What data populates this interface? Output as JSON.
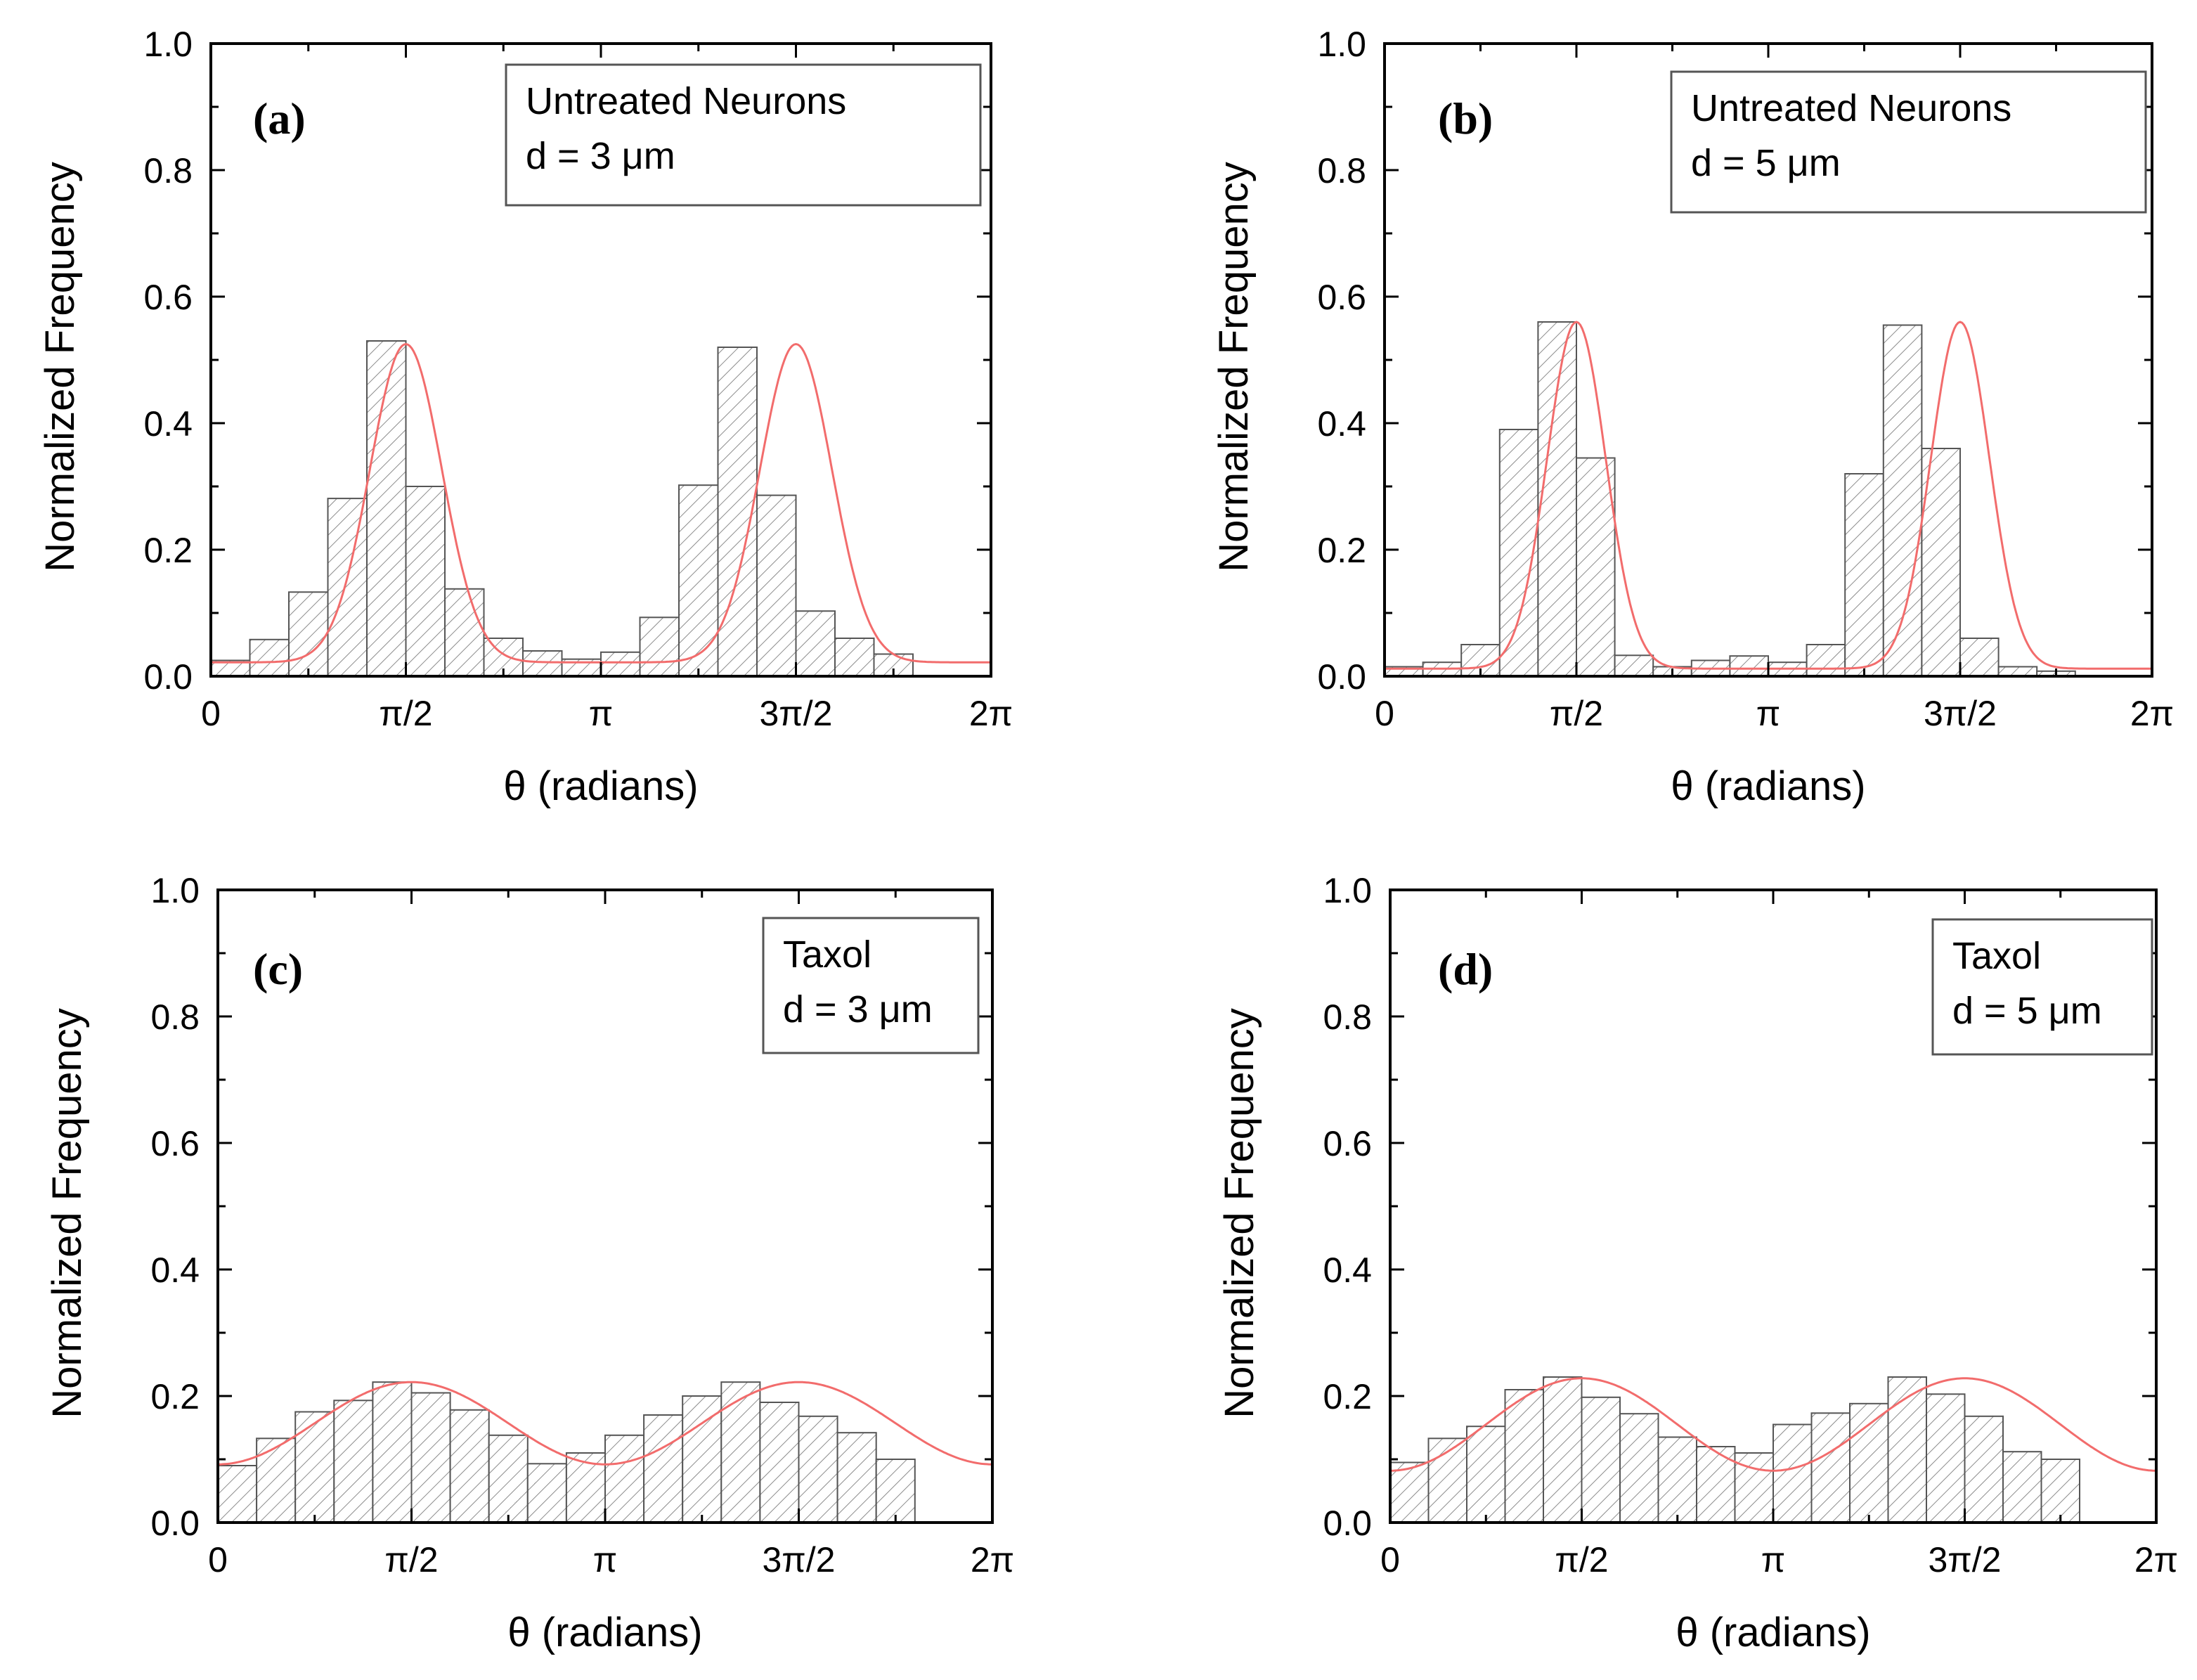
{
  "colors": {
    "bar_fill": "#ffffff",
    "bar_stroke": "#555555",
    "hatch": "#8c8c8c",
    "fit": "#f26c6c",
    "axis": "#000000"
  },
  "chart_data": [
    {
      "type": "bar",
      "panel": "(a)",
      "legend_lines": [
        "Untreated Neurons",
        "d = 3 μm"
      ],
      "legend_position": "top-right",
      "xlabel": "θ (radians)",
      "ylabel": "Normalized Frequency",
      "xlim": [
        0,
        6.2832
      ],
      "ylim": [
        0,
        1.0
      ],
      "yticks": [
        "0.0",
        "0.2",
        "0.4",
        "0.6",
        "0.8",
        "1.0"
      ],
      "xtick_labels": [
        "0",
        "π/2",
        "π",
        "3π/2",
        "2π"
      ],
      "bin_count": 20,
      "values": [
        0.025,
        0.058,
        0.133,
        0.281,
        0.53,
        0.3,
        0.138,
        0.06,
        0.04,
        0.027,
        0.038,
        0.093,
        0.302,
        0.52,
        0.286,
        0.103,
        0.06,
        0.035,
        0.0,
        0.0
      ],
      "fit": {
        "type": "gaussian-pair",
        "baseline": 0.022,
        "peak": 0.525,
        "sigma": 0.29,
        "centers": [
          1.5708,
          4.7124
        ]
      }
    },
    {
      "type": "bar",
      "panel": "(b)",
      "legend_lines": [
        "Untreated Neurons",
        "d = 5 μm"
      ],
      "legend_position": "top-right",
      "xlabel": "θ (radians)",
      "ylabel": "Normalized Frequency",
      "xlim": [
        0,
        6.2832
      ],
      "ylim": [
        0,
        1.0
      ],
      "yticks": [
        "0.0",
        "0.2",
        "0.4",
        "0.6",
        "0.8",
        "1.0"
      ],
      "xtick_labels": [
        "0",
        "π/2",
        "π",
        "3π/2",
        "2π"
      ],
      "bin_count": 20,
      "values": [
        0.015,
        0.022,
        0.05,
        0.39,
        0.56,
        0.345,
        0.033,
        0.015,
        0.025,
        0.032,
        0.022,
        0.05,
        0.32,
        0.555,
        0.36,
        0.06,
        0.015,
        0.008,
        0.0,
        0.0
      ],
      "fit": {
        "type": "gaussian-pair",
        "baseline": 0.012,
        "peak": 0.56,
        "sigma": 0.24,
        "centers": [
          1.5708,
          4.7124
        ]
      }
    },
    {
      "type": "bar",
      "panel": "(c)",
      "legend_lines": [
        "Taxol",
        "d = 3 μm"
      ],
      "legend_position": "top-right",
      "xlabel": "θ (radians)",
      "ylabel": "Normalized Frequency",
      "xlim": [
        0,
        6.2832
      ],
      "ylim": [
        0,
        1.0
      ],
      "yticks": [
        "0.0",
        "0.2",
        "0.4",
        "0.6",
        "0.8",
        "1.0"
      ],
      "xtick_labels": [
        "0",
        "π/2",
        "π",
        "3π/2",
        "2π"
      ],
      "bin_count": 20,
      "values": [
        0.09,
        0.133,
        0.175,
        0.193,
        0.222,
        0.205,
        0.178,
        0.138,
        0.093,
        0.11,
        0.138,
        0.17,
        0.2,
        0.222,
        0.19,
        0.168,
        0.142,
        0.1,
        0.0,
        0.0
      ],
      "fit": {
        "type": "cos2theta",
        "mean": 0.157,
        "amplitude": 0.065
      }
    },
    {
      "type": "bar",
      "panel": "(d)",
      "legend_lines": [
        "Taxol",
        "d = 5 μm"
      ],
      "legend_position": "top-right",
      "xlabel": "θ (radians)",
      "ylabel": "Normalized Frequency",
      "xlim": [
        0,
        6.2832
      ],
      "ylim": [
        0,
        1.0
      ],
      "yticks": [
        "0.0",
        "0.2",
        "0.4",
        "0.6",
        "0.8",
        "1.0"
      ],
      "xtick_labels": [
        "0",
        "π/2",
        "π",
        "3π/2",
        "2π"
      ],
      "bin_count": 20,
      "values": [
        0.095,
        0.133,
        0.152,
        0.21,
        0.23,
        0.198,
        0.172,
        0.135,
        0.12,
        0.11,
        0.155,
        0.173,
        0.188,
        0.23,
        0.203,
        0.168,
        0.112,
        0.1,
        0.0,
        0.0
      ],
      "fit": {
        "type": "cos2theta",
        "mean": 0.155,
        "amplitude": 0.073
      }
    }
  ]
}
